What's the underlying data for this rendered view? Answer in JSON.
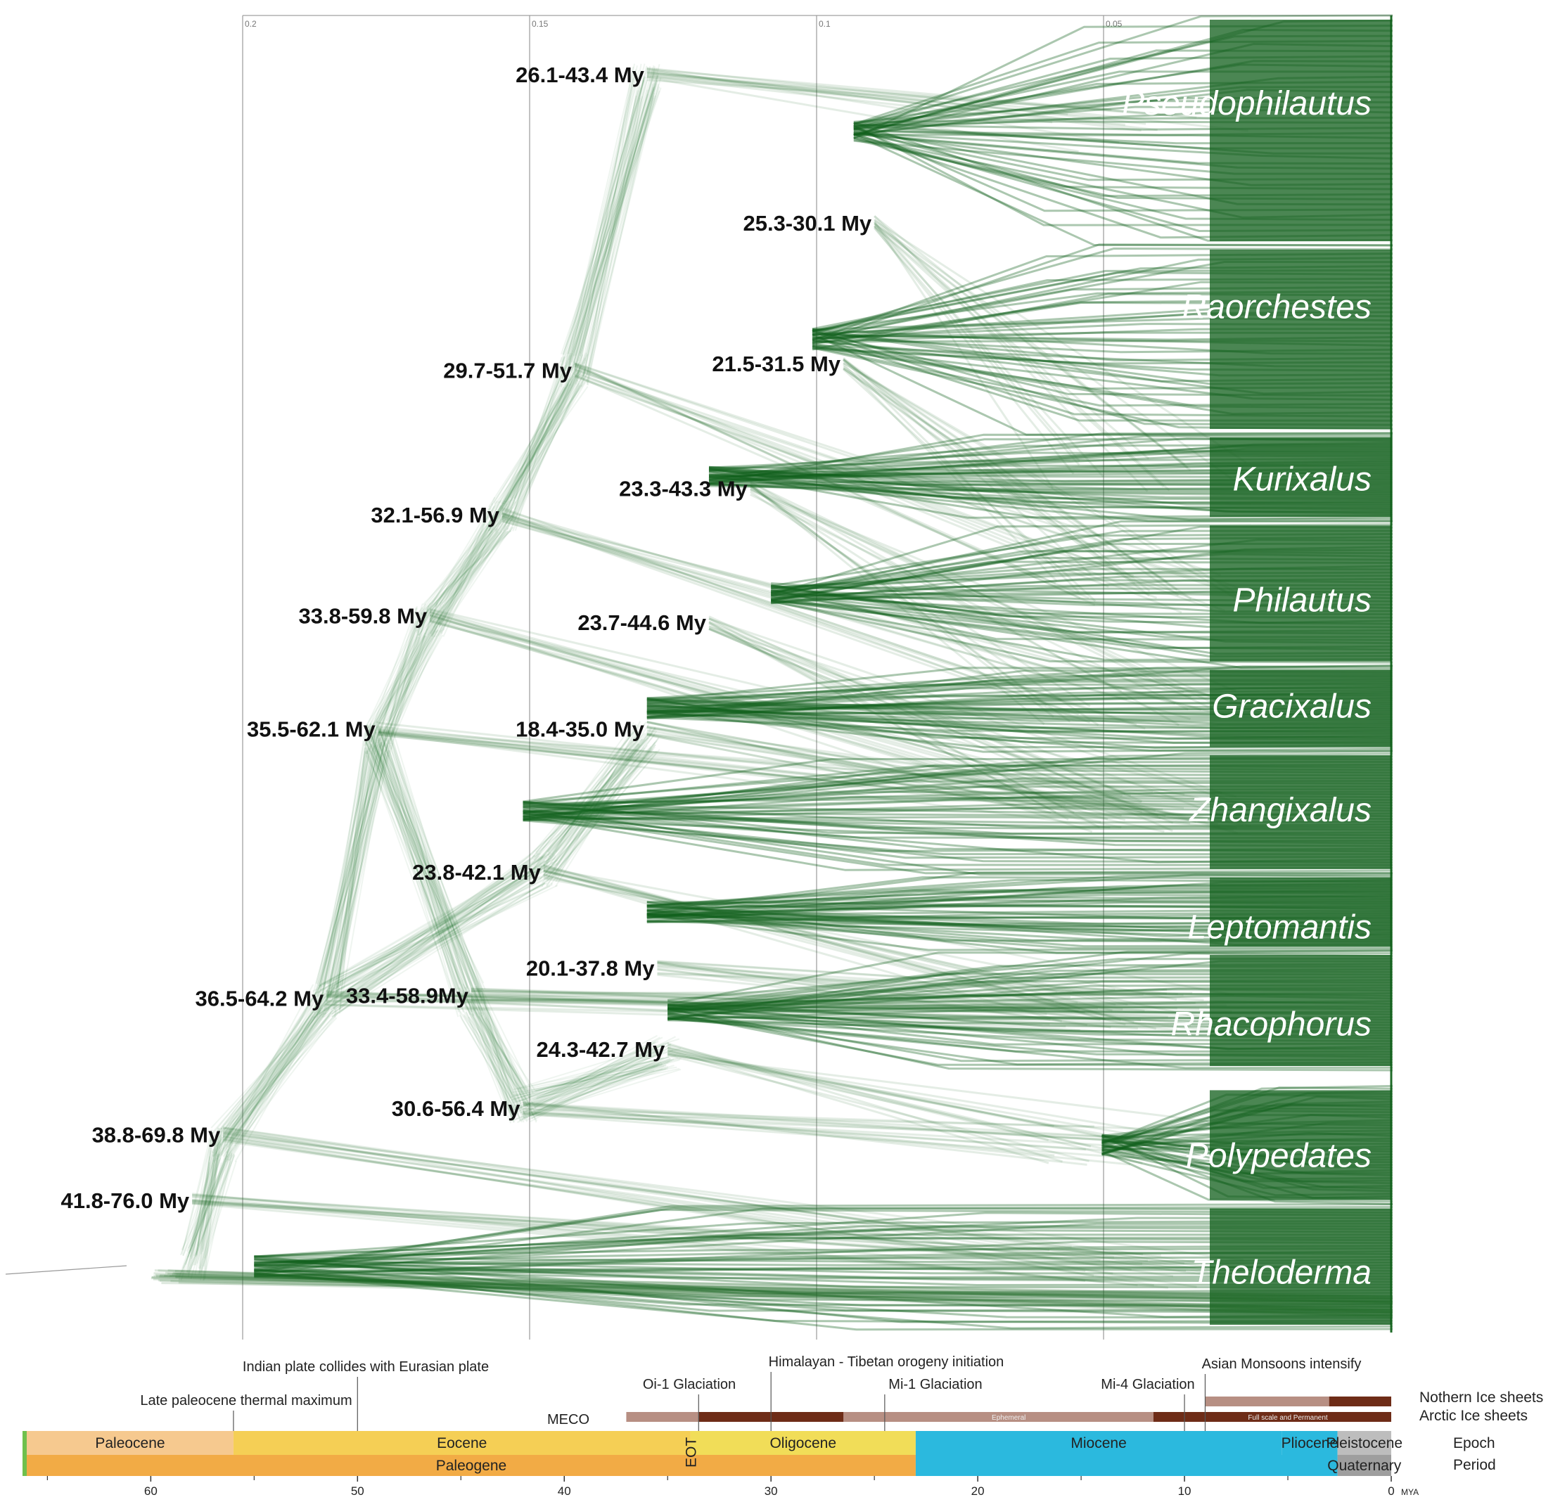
{
  "colors": {
    "branch": "#1f6b28",
    "branch_dense": "#0f5e1a",
    "paleocene": "#f6c98f",
    "eocene": "#f5cf55",
    "oligocene": "#f1dd58",
    "miocene": "#2bb9de",
    "pliocene": "#2bb9de",
    "pleistocene": "#bdbdbd",
    "paleogene": "#f2ab45",
    "neogene": "#2bb9de",
    "quaternary": "#9e9e9e",
    "ice_ephemeral": "#b78f83",
    "ice_permanent": "#6e2c17",
    "early_green": "#6fc04c"
  },
  "substitution_axis": {
    "ticks": [
      "0.2",
      "0.15",
      "0.1",
      "0.05"
    ]
  },
  "clades": [
    {
      "name": "Pseudophilautus",
      "y": 0.067
    },
    {
      "name": "Raorchestes",
      "y": 0.222
    },
    {
      "name": "Kurixalus",
      "y": 0.353
    },
    {
      "name": "Philautus",
      "y": 0.445
    },
    {
      "name": "Gracixalus",
      "y": 0.526
    },
    {
      "name": "Zhangixalus",
      "y": 0.605
    },
    {
      "name": "Leptomantis",
      "y": 0.694
    },
    {
      "name": "Rhacophorus",
      "y": 0.768
    },
    {
      "name": "Polypedates",
      "y": 0.868
    },
    {
      "name": "Theloderma",
      "y": 0.957
    }
  ],
  "node_ages": [
    {
      "label": "26.1-43.4 My",
      "age": 36.0,
      "y": 0.045
    },
    {
      "label": "25.3-30.1 My",
      "age": 25.0,
      "y": 0.158
    },
    {
      "label": "29.7-51.7 My",
      "age": 39.5,
      "y": 0.27
    },
    {
      "label": "21.5-31.5 My",
      "age": 26.5,
      "y": 0.265
    },
    {
      "label": "23.3-43.3 My",
      "age": 31.0,
      "y": 0.36
    },
    {
      "label": "32.1-56.9 My",
      "age": 43.0,
      "y": 0.38
    },
    {
      "label": "33.8-59.8 My",
      "age": 46.5,
      "y": 0.457
    },
    {
      "label": "23.7-44.6 My",
      "age": 33.0,
      "y": 0.462
    },
    {
      "label": "35.5-62.1 My",
      "age": 49.0,
      "y": 0.543
    },
    {
      "label": "18.4-35.0 My",
      "age": 36.0,
      "y": 0.543
    },
    {
      "label": "23.8-42.1 My",
      "age": 41.0,
      "y": 0.652
    },
    {
      "label": "20.1-37.8 My",
      "age": 35.5,
      "y": 0.725
    },
    {
      "label": "36.5-64.2 My",
      "age": 51.5,
      "y": 0.748
    },
    {
      "label": "33.4-58.9My",
      "age": 44.5,
      "y": 0.746
    },
    {
      "label": "24.3-42.7 My",
      "age": 35.0,
      "y": 0.787
    },
    {
      "label": "30.6-56.4 My",
      "age": 42.0,
      "y": 0.832
    },
    {
      "label": "38.8-69.8 My",
      "age": 56.5,
      "y": 0.852
    },
    {
      "label": "41.8-76.0 My",
      "age": 58.0,
      "y": 0.902
    }
  ],
  "timescale": {
    "events": [
      {
        "label": "Indian plate collides with Eurasian plate",
        "age": 50
      },
      {
        "label": "Late paleocene thermal maximum",
        "age": 56
      },
      {
        "label": "Himalayan - Tibetan orogeny initiation",
        "age": 30
      },
      {
        "label": "Oi-1 Glaciation",
        "age": 33.5
      },
      {
        "label": "Mi-1 Glaciation",
        "age": 24.5
      },
      {
        "label": "Mi-4 Glaciation",
        "age": 10
      },
      {
        "label": "Asian Monsoons intensify",
        "age": 9
      },
      {
        "label": "MECO",
        "age": 40
      }
    ],
    "ice": {
      "northern_label": "Nothern Ice sheets",
      "arctic_label": "Arctic Ice sheets",
      "ephemeral_label": "Ephemeral",
      "permanent_label": "Full scale and Permanent"
    },
    "epochs": [
      {
        "name": "Paleocene",
        "from": 66,
        "to": 56,
        "color": "paleocene"
      },
      {
        "name": "Eocene",
        "from": 56,
        "to": 33.9,
        "color": "eocene"
      },
      {
        "name": "Oligocene",
        "from": 33.9,
        "to": 23,
        "color": "oligocene"
      },
      {
        "name": "Miocene",
        "from": 23,
        "to": 5.3,
        "color": "miocene"
      },
      {
        "name": "Pliocene",
        "from": 5.3,
        "to": 2.6,
        "color": "pliocene"
      },
      {
        "name": "Pleistocene",
        "from": 2.6,
        "to": 0,
        "color": "pleistocene"
      }
    ],
    "eot_label": "EOT",
    "periods": [
      {
        "name": "Paleogene",
        "from": 66,
        "to": 23,
        "color": "paleogene"
      },
      {
        "name": "",
        "from": 23,
        "to": 2.6,
        "color": "neogene"
      },
      {
        "name": "Quaternary",
        "from": 2.6,
        "to": 0,
        "color": "quaternary"
      }
    ],
    "row_labels": {
      "epoch": "Epoch",
      "period": "Period"
    },
    "ticks": [
      "60",
      "50",
      "40",
      "30",
      "20",
      "10",
      "0"
    ],
    "unit": "MYA"
  }
}
